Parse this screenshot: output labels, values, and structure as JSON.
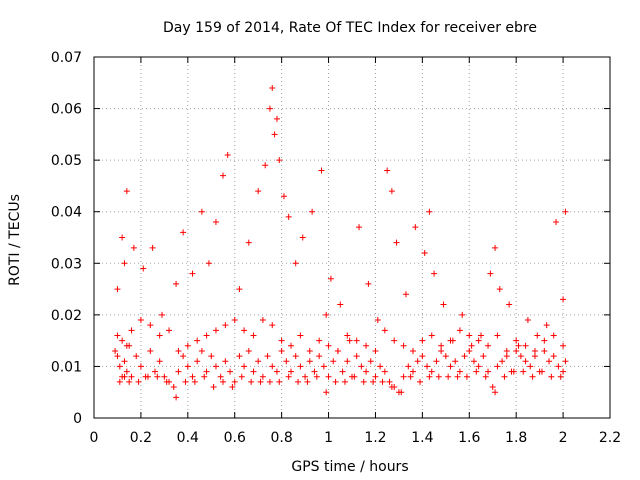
{
  "chart_data": {
    "type": "scatter",
    "title": "Day 159 of 2014, Rate Of TEC Index for receiver ebre",
    "xlabel": "GPS time / hours",
    "ylabel": "ROTI / TECUs",
    "xlim": [
      0,
      2.2
    ],
    "ylim": [
      0,
      0.07
    ],
    "xticks": [
      "0",
      "0.2",
      "0.4",
      "0.6",
      "0.8",
      "1",
      "1.2",
      "1.4",
      "1.6",
      "1.8",
      "2",
      "2.2"
    ],
    "yticks": [
      "0",
      "0.01",
      "0.02",
      "0.03",
      "0.04",
      "0.05",
      "0.06",
      "0.07"
    ],
    "grid": true,
    "marker": "+",
    "color": "#ff0000",
    "series": [
      {
        "name": "ROTI",
        "x": [
          0.09,
          0.1,
          0.11,
          0.12,
          0.13,
          0.14,
          0.15,
          0.16,
          0.18,
          0.2,
          0.22,
          0.24,
          0.26,
          0.28,
          0.3,
          0.32,
          0.34,
          0.36,
          0.38,
          0.4,
          0.42,
          0.44,
          0.46,
          0.48,
          0.5,
          0.52,
          0.54,
          0.56,
          0.58,
          0.6,
          0.62,
          0.64,
          0.66,
          0.68,
          0.7,
          0.72,
          0.74,
          0.76,
          0.78,
          0.8,
          0.82,
          0.84,
          0.86,
          0.88,
          0.9,
          0.92,
          0.94,
          0.96,
          0.98,
          1.0,
          1.02,
          1.04,
          1.06,
          1.08,
          1.1,
          1.12,
          1.14,
          1.16,
          1.18,
          1.2,
          1.22,
          1.24,
          1.26,
          1.28,
          1.3,
          1.32,
          1.34,
          1.36,
          1.38,
          1.4,
          1.42,
          1.44,
          1.46,
          1.48,
          1.5,
          1.52,
          1.54,
          1.56,
          1.58,
          1.6,
          1.62,
          1.64,
          1.66,
          1.68,
          1.7,
          1.72,
          1.74,
          1.76,
          1.78,
          1.8,
          1.82,
          1.84,
          1.86,
          1.88,
          1.9,
          1.92,
          1.94,
          1.96,
          1.98,
          2.0,
          2.01,
          0.1,
          0.12,
          0.14,
          0.16,
          0.2,
          0.24,
          0.28,
          0.32,
          0.36,
          0.4,
          0.44,
          0.48,
          0.52,
          0.56,
          0.6,
          0.64,
          0.68,
          0.72,
          0.76,
          0.8,
          0.84,
          0.88,
          0.92,
          0.96,
          1.0,
          1.04,
          1.08,
          1.12,
          1.16,
          1.2,
          1.24,
          1.28,
          1.32,
          1.36,
          1.4,
          1.44,
          1.48,
          1.52,
          1.56,
          1.6,
          1.64,
          1.68,
          1.72,
          1.76,
          1.8,
          1.84,
          1.88,
          1.92,
          1.96,
          2.0,
          0.11,
          0.13,
          0.15,
          0.19,
          0.23,
          0.27,
          0.31,
          0.35,
          0.39,
          0.43,
          0.47,
          0.51,
          0.55,
          0.59,
          0.63,
          0.67,
          0.71,
          0.75,
          0.79,
          0.83,
          0.87,
          0.91,
          0.95,
          0.99,
          1.03,
          1.07,
          1.11,
          1.15,
          1.19,
          1.23,
          1.27,
          1.31,
          1.35,
          1.39,
          1.43,
          1.47,
          1.51,
          1.55,
          1.59,
          1.63,
          1.67,
          1.71,
          1.75,
          1.79,
          1.83,
          1.87,
          1.91,
          1.95,
          1.99,
          0.1,
          0.12,
          0.13,
          0.14,
          0.17,
          0.21,
          0.25,
          0.29,
          0.35,
          0.38,
          0.42,
          0.46,
          0.49,
          0.52,
          0.55,
          0.57,
          0.62,
          0.66,
          0.7,
          0.73,
          0.75,
          0.76,
          0.77,
          0.78,
          0.79,
          0.81,
          0.83,
          0.86,
          0.89,
          0.93,
          0.97,
          0.99,
          1.01,
          1.05,
          1.09,
          1.13,
          1.17,
          1.21,
          1.25,
          1.27,
          1.29,
          1.33,
          1.37,
          1.41,
          1.43,
          1.45,
          1.49,
          1.53,
          1.57,
          1.61,
          1.65,
          1.69,
          1.71,
          1.73,
          1.77,
          1.81,
          1.85,
          1.89,
          1.93,
          1.97,
          2.0,
          2.01
        ],
        "y": [
          0.013,
          0.012,
          0.01,
          0.008,
          0.011,
          0.009,
          0.014,
          0.008,
          0.012,
          0.01,
          0.008,
          0.013,
          0.009,
          0.011,
          0.008,
          0.007,
          0.006,
          0.009,
          0.012,
          0.01,
          0.008,
          0.011,
          0.013,
          0.009,
          0.012,
          0.01,
          0.008,
          0.011,
          0.009,
          0.007,
          0.012,
          0.01,
          0.013,
          0.009,
          0.011,
          0.008,
          0.012,
          0.01,
          0.009,
          0.013,
          0.011,
          0.009,
          0.012,
          0.01,
          0.008,
          0.011,
          0.009,
          0.012,
          0.01,
          0.008,
          0.011,
          0.013,
          0.009,
          0.011,
          0.008,
          0.012,
          0.01,
          0.009,
          0.011,
          0.008,
          0.01,
          0.009,
          0.007,
          0.006,
          0.005,
          0.008,
          0.01,
          0.009,
          0.011,
          0.012,
          0.01,
          0.009,
          0.011,
          0.013,
          0.012,
          0.01,
          0.011,
          0.009,
          0.012,
          0.013,
          0.011,
          0.01,
          0.012,
          0.009,
          0.006,
          0.01,
          0.011,
          0.012,
          0.009,
          0.013,
          0.012,
          0.011,
          0.01,
          0.012,
          0.009,
          0.013,
          0.011,
          0.012,
          0.01,
          0.009,
          0.011,
          0.016,
          0.015,
          0.014,
          0.017,
          0.019,
          0.018,
          0.016,
          0.017,
          0.013,
          0.014,
          0.015,
          0.016,
          0.017,
          0.018,
          0.019,
          0.017,
          0.016,
          0.019,
          0.018,
          0.015,
          0.014,
          0.016,
          0.013,
          0.015,
          0.014,
          0.013,
          0.016,
          0.015,
          0.014,
          0.013,
          0.017,
          0.015,
          0.014,
          0.013,
          0.015,
          0.016,
          0.014,
          0.015,
          0.017,
          0.016,
          0.015,
          0.014,
          0.016,
          0.013,
          0.015,
          0.014,
          0.013,
          0.015,
          0.016,
          0.014,
          0.007,
          0.008,
          0.007,
          0.007,
          0.008,
          0.008,
          0.007,
          0.004,
          0.007,
          0.007,
          0.008,
          0.006,
          0.007,
          0.006,
          0.008,
          0.007,
          0.007,
          0.007,
          0.007,
          0.008,
          0.007,
          0.007,
          0.008,
          0.005,
          0.007,
          0.007,
          0.008,
          0.007,
          0.007,
          0.007,
          0.006,
          0.005,
          0.008,
          0.007,
          0.008,
          0.008,
          0.008,
          0.008,
          0.008,
          0.009,
          0.008,
          0.005,
          0.008,
          0.009,
          0.009,
          0.008,
          0.009,
          0.008,
          0.008,
          0.025,
          0.035,
          0.03,
          0.044,
          0.033,
          0.029,
          0.033,
          0.02,
          0.026,
          0.036,
          0.028,
          0.04,
          0.03,
          0.038,
          0.047,
          0.051,
          0.025,
          0.034,
          0.044,
          0.049,
          0.06,
          0.064,
          0.055,
          0.058,
          0.05,
          0.043,
          0.039,
          0.03,
          0.035,
          0.04,
          0.048,
          0.02,
          0.027,
          0.022,
          0.015,
          0.037,
          0.026,
          0.019,
          0.048,
          0.044,
          0.034,
          0.024,
          0.037,
          0.032,
          0.04,
          0.028,
          0.022,
          0.015,
          0.02,
          0.014,
          0.016,
          0.028,
          0.033,
          0.025,
          0.022,
          0.014,
          0.019,
          0.016,
          0.018,
          0.038,
          0.023,
          0.04
        ]
      }
    ]
  }
}
